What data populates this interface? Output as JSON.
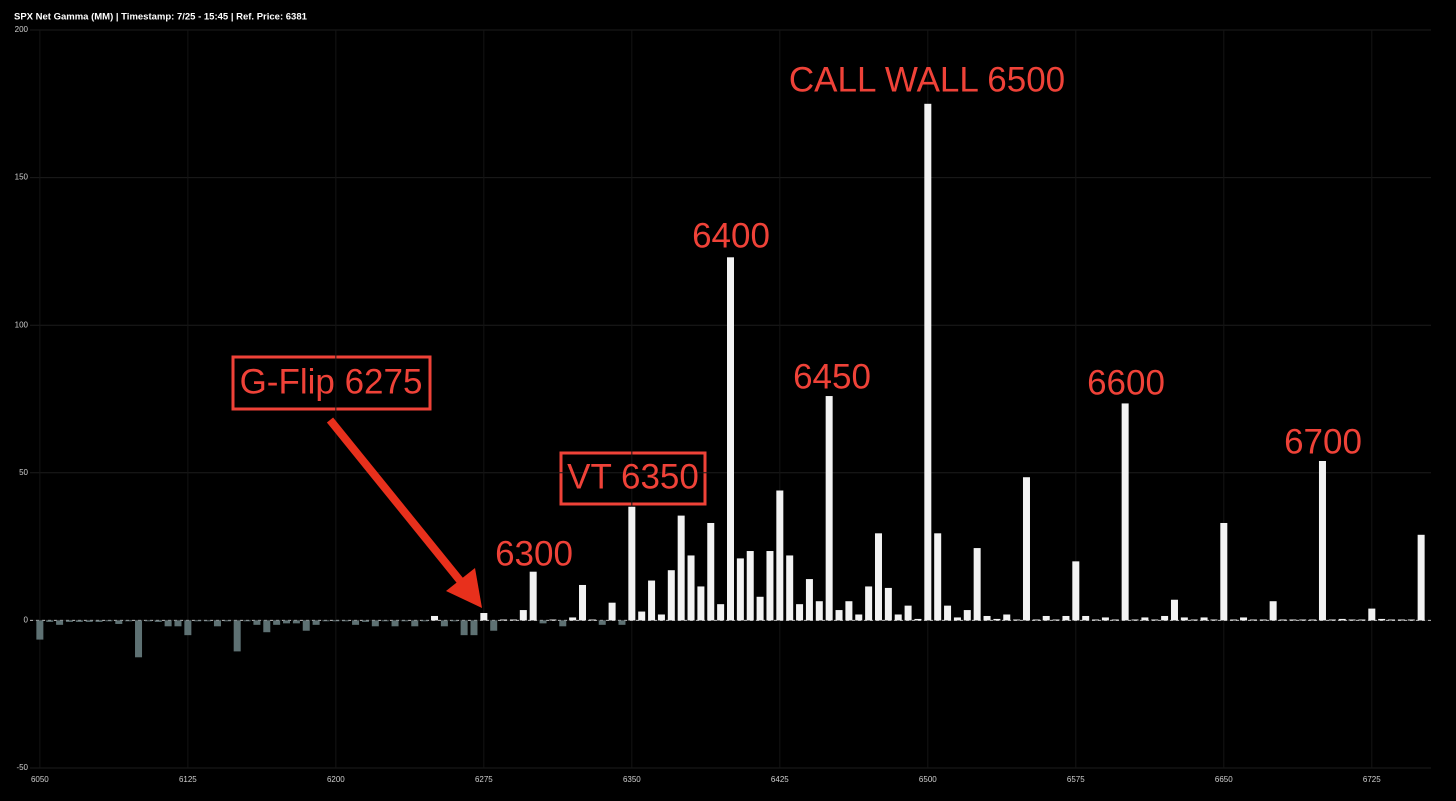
{
  "chart_data": {
    "type": "bar",
    "title": "SPX Net Gamma (MM) | Timestamp: 7/25 - 15:45  | Ref. Price: 6381",
    "x": [
      6050,
      6055,
      6060,
      6065,
      6070,
      6075,
      6080,
      6085,
      6090,
      6095,
      6100,
      6105,
      6110,
      6115,
      6120,
      6125,
      6130,
      6135,
      6140,
      6145,
      6150,
      6155,
      6160,
      6165,
      6170,
      6175,
      6180,
      6185,
      6190,
      6195,
      6200,
      6205,
      6210,
      6215,
      6220,
      6225,
      6230,
      6235,
      6240,
      6245,
      6250,
      6255,
      6260,
      6265,
      6270,
      6275,
      6280,
      6285,
      6290,
      6295,
      6300,
      6305,
      6310,
      6315,
      6320,
      6325,
      6330,
      6335,
      6340,
      6345,
      6350,
      6355,
      6360,
      6365,
      6370,
      6375,
      6380,
      6385,
      6390,
      6395,
      6400,
      6405,
      6410,
      6415,
      6420,
      6425,
      6430,
      6435,
      6440,
      6445,
      6450,
      6455,
      6460,
      6465,
      6470,
      6475,
      6480,
      6485,
      6490,
      6495,
      6500,
      6505,
      6510,
      6515,
      6520,
      6525,
      6530,
      6535,
      6540,
      6545,
      6550,
      6555,
      6560,
      6565,
      6570,
      6575,
      6580,
      6585,
      6590,
      6595,
      6600,
      6605,
      6610,
      6615,
      6620,
      6625,
      6630,
      6635,
      6640,
      6645,
      6650,
      6655,
      6660,
      6665,
      6670,
      6675,
      6680,
      6685,
      6690,
      6695,
      6700,
      6705,
      6710,
      6715,
      6720,
      6725,
      6730,
      6735,
      6740,
      6745,
      6750
    ],
    "values": [
      -6.5,
      -0.5,
      -1.5,
      -0.5,
      -0.5,
      -0.5,
      -0.5,
      -0.3,
      -1.2,
      -0.3,
      -12.5,
      -0.3,
      -0.5,
      -2,
      -2,
      -5,
      -0.3,
      -0.3,
      -2,
      -0.3,
      -10.5,
      -0.3,
      -1.5,
      -4,
      -1.5,
      -1,
      -1,
      -3.5,
      -1.5,
      -0.3,
      -0.3,
      -0.3,
      -1.5,
      -0.5,
      -2,
      -0.3,
      -2,
      -0.3,
      -2,
      -0.3,
      1.5,
      -2,
      -0.3,
      -5,
      -5,
      2.5,
      -3.5,
      0.3,
      0.3,
      3.5,
      16.5,
      -1,
      0.3,
      -2,
      1,
      12,
      0.3,
      -1.5,
      6,
      -1.5,
      38.5,
      3,
      13.5,
      2,
      17,
      35.5,
      22,
      11.5,
      33,
      5.5,
      123,
      21,
      23.5,
      8,
      23.5,
      44,
      22,
      5.5,
      14,
      6.5,
      76,
      3.5,
      6.5,
      2,
      11.5,
      29.5,
      11,
      2,
      5,
      0.5,
      175,
      29.5,
      5,
      1,
      3.5,
      24.5,
      1.5,
      0.5,
      2,
      0.3,
      48.5,
      0.3,
      1.5,
      0.3,
      1.5,
      20,
      1.5,
      0.3,
      1,
      0.3,
      73.5,
      0.3,
      1,
      0.3,
      1.5,
      7,
      1,
      0.3,
      1,
      0.3,
      33,
      0.3,
      1,
      0.3,
      0.3,
      6.5,
      0.3,
      0.3,
      0.3,
      0.3,
      54,
      0.3,
      0.5,
      0.3,
      0.3,
      4,
      0.5,
      0.3,
      0.3,
      0.3,
      29
    ],
    "color_positive": "#f2f2f2",
    "color_negative": "#5e7173",
    "xlim": [
      6045,
      6755
    ],
    "xticks": [
      6050,
      6125,
      6200,
      6275,
      6350,
      6425,
      6500,
      6575,
      6650,
      6725
    ],
    "ylim": [
      -50,
      200
    ],
    "yticks": [
      -50,
      0,
      50,
      100,
      150,
      200
    ],
    "grid": true,
    "annotations": [
      "CALL WALL 6500",
      "6400",
      "6450",
      "6600",
      "6700",
      "6300",
      "G-Flip 6275",
      "VT 6350"
    ]
  }
}
